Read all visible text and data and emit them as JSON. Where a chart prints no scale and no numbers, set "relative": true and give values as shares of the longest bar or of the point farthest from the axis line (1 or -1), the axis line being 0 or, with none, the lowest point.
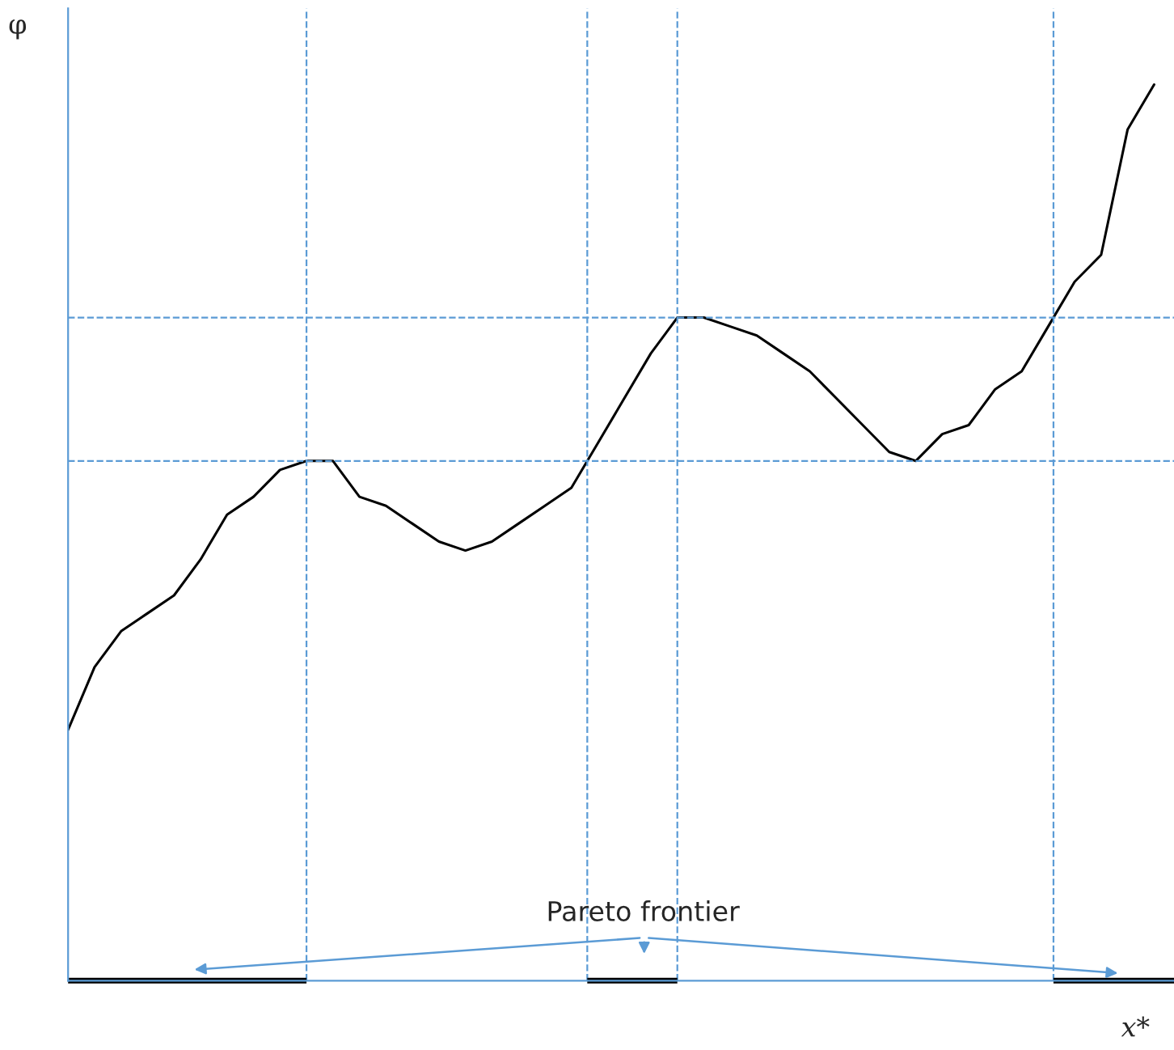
{
  "chart_data": {
    "type": "line",
    "relative": true,
    "xlabel": "x*",
    "ylabel": "φ",
    "categories": [
      null,
      null,
      null,
      null,
      null,
      null,
      null,
      null,
      null,
      null,
      null,
      null,
      null,
      null,
      null,
      null,
      null,
      null,
      null,
      null,
      null,
      null,
      null,
      null,
      null,
      null,
      null,
      null,
      null,
      null,
      null,
      null,
      null,
      null,
      null,
      null,
      null,
      null,
      null,
      null,
      null,
      null
    ],
    "series": [
      {
        "color": "#000000",
        "values": [
          0.28,
          0.35,
          0.39,
          0.41,
          0.43,
          0.47,
          0.52,
          0.54,
          0.57,
          0.58,
          0.58,
          0.54,
          0.53,
          0.51,
          0.49,
          0.48,
          0.49,
          0.51,
          0.53,
          0.55,
          0.6,
          0.65,
          0.7,
          0.74,
          0.74,
          0.73,
          0.72,
          0.7,
          0.68,
          0.65,
          0.62,
          0.59,
          0.58,
          0.61,
          0.62,
          0.66,
          0.68,
          0.73,
          0.78,
          0.81,
          0.95,
          1.0
        ]
      }
    ],
    "ref_lines": [
      {
        "axis": "y",
        "value": 0.74,
        "color": "#5b9bd5",
        "line_style": "dashed"
      },
      {
        "axis": "y",
        "value": 0.58,
        "color": "#5b9bd5",
        "line_style": "dashed"
      }
    ],
    "annotations": [
      "Pareto frontier"
    ],
    "legend": false,
    "marker": "none",
    "line_style": "solid"
  }
}
